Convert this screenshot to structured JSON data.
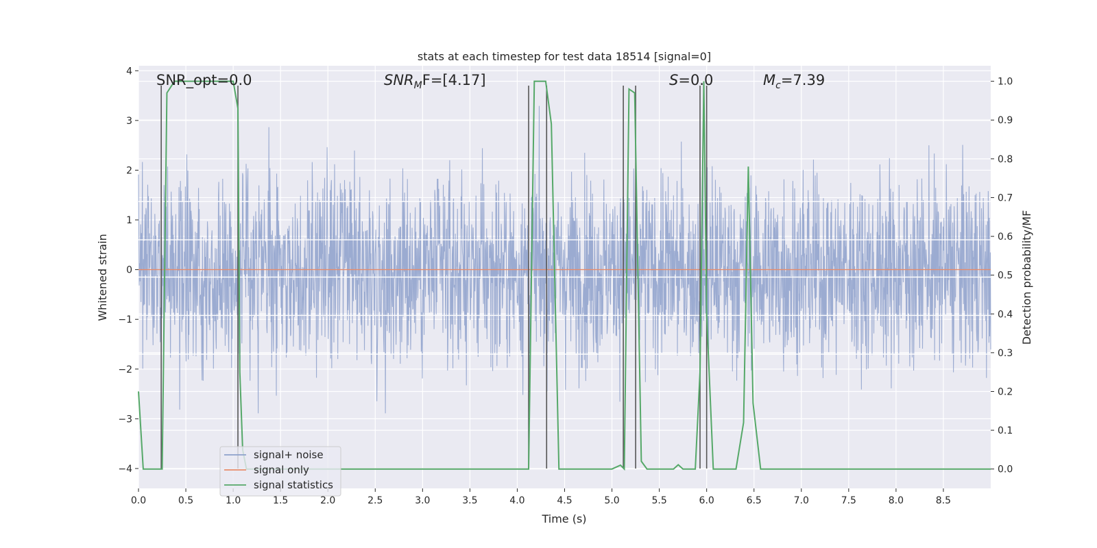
{
  "chart_data": {
    "type": "line",
    "title": "stats at each timestep for test data 18514 [signal=0]",
    "xlabel": "Time (s)",
    "ylabel": "Whitened strain",
    "y2label": "Detection probability/MF",
    "xlim": [
      0,
      9.0
    ],
    "ylim": [
      -4.4,
      4.1
    ],
    "y2lim": [
      -0.05,
      1.04
    ],
    "xticks": [
      0.0,
      0.5,
      1.0,
      1.5,
      2.0,
      2.5,
      3.0,
      3.5,
      4.0,
      4.5,
      5.0,
      5.5,
      6.0,
      6.5,
      7.0,
      7.5,
      8.0,
      8.5
    ],
    "xtick_labels": [
      "0.0",
      "0.5",
      "1.0",
      "1.5",
      "2.0",
      "2.5",
      "3.0",
      "3.5",
      "4.0",
      "4.5",
      "5.0",
      "5.5",
      "6.0",
      "6.5",
      "7.0",
      "7.5",
      "8.0",
      "8.5"
    ],
    "yticks": [
      -4,
      -3,
      -2,
      -1,
      0,
      1,
      2,
      3,
      4
    ],
    "ytick_labels": [
      "−4",
      "−3",
      "−2",
      "−1",
      "0",
      "1",
      "2",
      "3",
      "4"
    ],
    "y2ticks": [
      0.0,
      0.1,
      0.2,
      0.3,
      0.4,
      0.5,
      0.6,
      0.7,
      0.8,
      0.9,
      1.0
    ],
    "y2tick_labels": [
      "0.0",
      "0.1",
      "0.2",
      "0.3",
      "0.4",
      "0.5",
      "0.6",
      "0.7",
      "0.8",
      "0.9",
      "1.0"
    ],
    "annotations": {
      "snr_opt": "SNR_opt=0.0",
      "snr_mf_sym": "SNR",
      "snr_mf_sub": "M",
      "snr_mf_rest": "F=[4.17]",
      "s_sym": "S",
      "s_rest": "=0.0",
      "mc_sym": "M",
      "mc_sub": "c",
      "mc_rest": "=7.39"
    },
    "legend": {
      "location": "lower-left",
      "entries": [
        "signal+ noise",
        "signal only",
        "signal statistics"
      ]
    },
    "series": [
      {
        "name": "signal+ noise",
        "color": "#8da0cb",
        "kind": "noise",
        "amplitude_std": 1.1,
        "x_range": [
          0,
          9.0
        ]
      },
      {
        "name": "signal only",
        "color": "#e78b6a",
        "axis": "left",
        "x": [
          0,
          9.0
        ],
        "y": [
          0,
          0
        ]
      },
      {
        "name": "signal statistics",
        "color": "#55a868",
        "axis": "right",
        "x": [
          0.0,
          0.05,
          0.25,
          0.3,
          0.38,
          0.5,
          1.0,
          1.05,
          1.07,
          1.1,
          1.14,
          2.0,
          3.0,
          4.0,
          4.12,
          4.18,
          4.3,
          4.36,
          4.44,
          4.8,
          5.0,
          5.09,
          5.13,
          5.18,
          5.24,
          5.31,
          5.37,
          5.5,
          5.65,
          5.7,
          5.75,
          5.88,
          5.93,
          5.97,
          6.0,
          6.07,
          6.31,
          6.39,
          6.44,
          6.49,
          6.57,
          7.0,
          8.0,
          9.0
        ],
        "y": [
          0.2,
          0.0,
          0.0,
          0.97,
          1.0,
          1.0,
          1.0,
          0.93,
          0.25,
          0.05,
          0.0,
          0.0,
          0.0,
          0.0,
          0.0,
          1.0,
          1.0,
          0.89,
          0.0,
          0.0,
          0.0,
          0.01,
          0.0,
          0.98,
          0.97,
          0.02,
          0.0,
          0.0,
          0.0,
          0.011,
          0.0,
          0.0,
          0.25,
          1.0,
          0.4,
          0.0,
          0.0,
          0.12,
          0.78,
          0.17,
          0.0,
          0.0,
          0.0,
          0.0
        ]
      }
    ],
    "vertical_markers": {
      "color": "#555555",
      "x": [
        0.24,
        1.05,
        4.12,
        4.31,
        5.12,
        5.25,
        5.93,
        6.0
      ],
      "y_top": 3.7,
      "y_bottom": -4.0
    },
    "horizontal_lines": {
      "color": "#ffffff",
      "y": [
        1.37,
        0.6,
        -0.15,
        -0.92,
        -1.7
      ]
    }
  }
}
